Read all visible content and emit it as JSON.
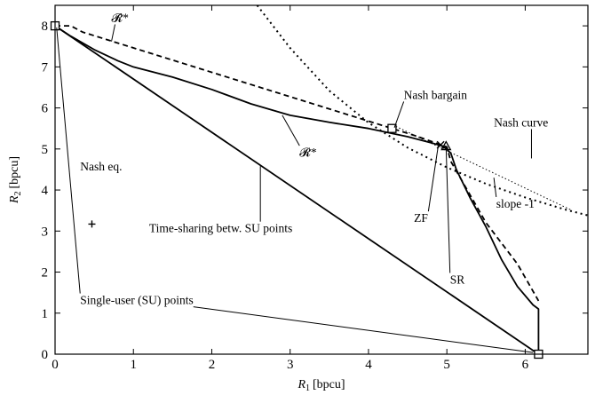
{
  "chart_data": {
    "type": "line",
    "xlabel": "R",
    "xlabel_sub": "1",
    "xlabel_unit": "[bpcu]",
    "ylabel": "R",
    "ylabel_sub": "2",
    "ylabel_unit": "[bpcu]",
    "xlim": [
      0,
      6.8
    ],
    "ylim": [
      0,
      8.5
    ],
    "x_ticks": [
      0,
      1,
      2,
      3,
      4,
      5,
      6
    ],
    "y_ticks": [
      0,
      1,
      2,
      3,
      4,
      5,
      6,
      7,
      8
    ],
    "grid": false,
    "series": [
      {
        "name": "𝓡*",
        "style": "solid",
        "points": [
          [
            0,
            8.0
          ],
          [
            0.2,
            7.75
          ],
          [
            0.5,
            7.42
          ],
          [
            0.8,
            7.15
          ],
          [
            1.0,
            7.0
          ],
          [
            1.5,
            6.75
          ],
          [
            2.0,
            6.45
          ],
          [
            2.5,
            6.1
          ],
          [
            3.0,
            5.82
          ],
          [
            3.5,
            5.65
          ],
          [
            4.0,
            5.5
          ],
          [
            4.5,
            5.3
          ],
          [
            4.8,
            5.15
          ],
          [
            4.95,
            5.07
          ],
          [
            5.05,
            4.9
          ],
          [
            5.12,
            4.5
          ],
          [
            5.3,
            3.8
          ],
          [
            5.5,
            3.1
          ],
          [
            5.7,
            2.3
          ],
          [
            5.9,
            1.65
          ],
          [
            6.1,
            1.2
          ],
          [
            6.17,
            1.1
          ],
          [
            6.17,
            0
          ]
        ]
      },
      {
        "name": "𝓡̄*",
        "style": "dashed",
        "points": [
          [
            0,
            8.0
          ],
          [
            0.2,
            8.0
          ],
          [
            0.35,
            7.85
          ],
          [
            4.3,
            5.5
          ],
          [
            4.6,
            5.32
          ],
          [
            5.0,
            5.05
          ],
          [
            5.05,
            4.7
          ],
          [
            5.5,
            3.2
          ],
          [
            5.9,
            2.2
          ],
          [
            6.17,
            1.3
          ]
        ]
      },
      {
        "name": "Time-sharing betw. SU points",
        "style": "solid",
        "points": [
          [
            0,
            8.0
          ],
          [
            6.17,
            0
          ]
        ]
      },
      {
        "name": "Nash curve",
        "style": "dotted",
        "points": [
          [
            2.58,
            8.5
          ],
          [
            3.0,
            7.46
          ],
          [
            3.5,
            6.42
          ],
          [
            4.0,
            5.64
          ],
          [
            4.5,
            5.03
          ],
          [
            5.0,
            4.55
          ],
          [
            5.5,
            4.15
          ],
          [
            6.0,
            3.82
          ],
          [
            6.5,
            3.53
          ],
          [
            6.8,
            3.38
          ]
        ]
      },
      {
        "name": "slope -1",
        "style": "thin-dotted",
        "points": [
          [
            4.35,
            5.55
          ],
          [
            6.6,
            3.5
          ]
        ]
      }
    ],
    "markers": [
      {
        "label": "Single-user (SU) points",
        "shape": "square",
        "x": 0,
        "y": 8.0
      },
      {
        "label": "Single-user (SU) points",
        "shape": "square",
        "x": 6.17,
        "y": 0
      },
      {
        "label": "Nash bargain",
        "shape": "square",
        "x": 4.3,
        "y": 5.5
      },
      {
        "label": "Nash eq.",
        "shape": "plus",
        "x": 0.47,
        "y": 3.17
      },
      {
        "label": "ZF",
        "shape": "cross",
        "x": 4.92,
        "y": 5.1
      },
      {
        "label": "SR",
        "shape": "triangle",
        "x": 4.99,
        "y": 5.07
      }
    ],
    "annotations": [
      {
        "text": "𝓡̄*",
        "x": 0.72,
        "y": 8.1,
        "arrow_to": [
          0.72,
          7.62
        ]
      },
      {
        "text": "𝓡*",
        "x": 3.12,
        "y": 4.82,
        "arrow_to": [
          2.9,
          5.82
        ]
      },
      {
        "text": "Nash bargain",
        "x": 4.45,
        "y": 6.22,
        "arrow_to": [
          4.33,
          5.52
        ]
      },
      {
        "text": "Nash curve",
        "x": 5.6,
        "y": 5.55,
        "arrow_to": [
          6.08,
          4.77
        ]
      },
      {
        "text": "slope -1",
        "x": 5.63,
        "y": 3.57,
        "arrow_to": [
          5.6,
          4.3
        ]
      },
      {
        "text": "Nash eq.",
        "x": 0.32,
        "y": 4.48,
        "arrow_to": null
      },
      {
        "text": "Time-sharing betw. SU points",
        "x": 1.2,
        "y": 2.97,
        "arrow_to": [
          2.62,
          4.58
        ]
      },
      {
        "text": "ZF",
        "x": 4.58,
        "y": 3.22,
        "arrow_to": [
          4.89,
          5.08
        ]
      },
      {
        "text": "SR",
        "x": 5.04,
        "y": 1.72,
        "arrow_to": [
          4.99,
          5.05
        ]
      },
      {
        "text": "Single-user (SU) points",
        "x": 0.32,
        "y": 1.22,
        "arrow_to": [
          0.02,
          7.96
        ],
        "arrow_to2": [
          6.1,
          0.04
        ]
      }
    ]
  }
}
